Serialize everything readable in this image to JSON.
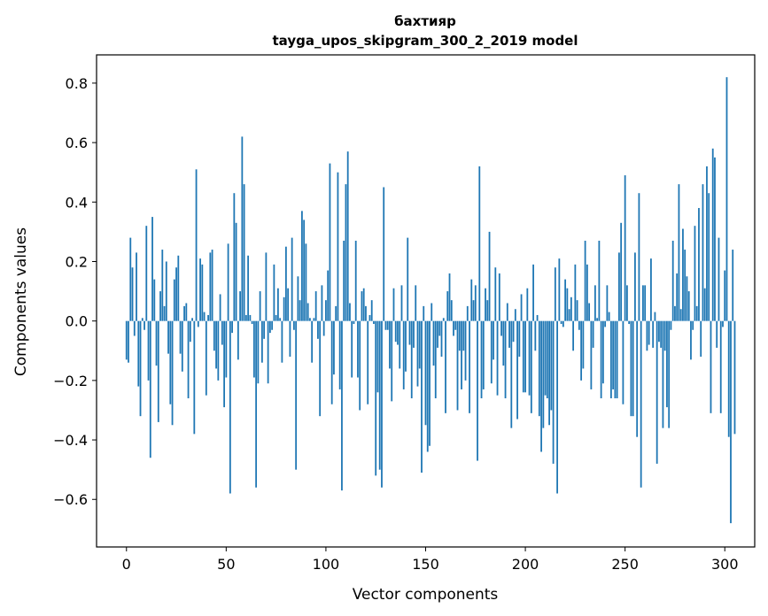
{
  "chart_data": {
    "type": "bar",
    "title_line1": "бахтияр",
    "title_line2": "tayga_upos_skipgram_300_2_2019 model",
    "xlabel": "Vector components",
    "ylabel": "Components values",
    "xlim": [
      -15,
      315
    ],
    "ylim": [
      -0.76,
      0.895
    ],
    "x_ticks": [
      0,
      50,
      100,
      150,
      200,
      250,
      300
    ],
    "x_tick_labels": [
      "0",
      "50",
      "100",
      "150",
      "200",
      "250",
      "300"
    ],
    "y_ticks": [
      -0.6,
      -0.4,
      -0.2,
      0.0,
      0.2,
      0.4,
      0.6,
      0.8
    ],
    "y_tick_labels": [
      "−0.6",
      "−0.4",
      "−0.2",
      "0.0",
      "0.2",
      "0.4",
      "0.6",
      "0.8"
    ],
    "bar_color": "#1f77b4",
    "grid": false,
    "legend": "none",
    "series": [
      {
        "name": "бахтияр",
        "values": [
          -0.13,
          -0.14,
          0.28,
          0.18,
          -0.05,
          0.23,
          -0.22,
          -0.32,
          0.01,
          -0.03,
          0.32,
          -0.2,
          -0.46,
          0.35,
          0.14,
          -0.15,
          -0.34,
          0.1,
          0.24,
          0.05,
          0.2,
          -0.11,
          -0.28,
          -0.35,
          0.14,
          0.18,
          0.22,
          -0.11,
          -0.17,
          0.05,
          0.06,
          -0.26,
          -0.07,
          0.01,
          -0.38,
          0.51,
          -0.02,
          0.21,
          0.19,
          0.03,
          -0.25,
          0.02,
          0.23,
          0.24,
          -0.1,
          -0.16,
          -0.2,
          0.09,
          -0.08,
          -0.29,
          -0.19,
          0.26,
          -0.58,
          -0.04,
          0.43,
          0.33,
          -0.13,
          0.1,
          0.62,
          0.46,
          0.02,
          0.22,
          0.02,
          -0.01,
          -0.19,
          -0.56,
          -0.21,
          0.1,
          -0.14,
          -0.06,
          0.23,
          -0.21,
          -0.04,
          -0.03,
          0.19,
          0.02,
          0.11,
          0.01,
          -0.14,
          0.08,
          0.25,
          0.11,
          -0.12,
          0.28,
          -0.03,
          -0.5,
          0.15,
          0.07,
          0.37,
          0.34,
          0.26,
          0.06,
          0.01,
          -0.14,
          0.01,
          0.1,
          -0.06,
          -0.32,
          0.12,
          -0.05,
          0.07,
          0.17,
          0.53,
          -0.28,
          -0.18,
          0.05,
          0.5,
          -0.23,
          -0.57,
          0.27,
          0.46,
          0.57,
          0.06,
          -0.19,
          -0.01,
          0.27,
          -0.19,
          -0.3,
          0.1,
          0.11,
          0.05,
          -0.28,
          0.02,
          0.07,
          -0.01,
          -0.52,
          -0.24,
          -0.5,
          -0.56,
          0.45,
          -0.03,
          -0.03,
          -0.16,
          -0.27,
          0.11,
          -0.07,
          -0.08,
          -0.16,
          0.12,
          -0.23,
          -0.17,
          0.28,
          -0.08,
          -0.26,
          -0.09,
          0.12,
          -0.22,
          -0.16,
          -0.51,
          0.05,
          -0.35,
          -0.44,
          -0.42,
          0.06,
          -0.15,
          -0.26,
          -0.09,
          -0.05,
          -0.12,
          0.01,
          -0.31,
          0.1,
          0.16,
          0.07,
          -0.05,
          -0.03,
          -0.3,
          -0.1,
          -0.23,
          -0.1,
          -0.2,
          0.05,
          -0.31,
          0.14,
          0.07,
          0.12,
          -0.47,
          0.52,
          -0.26,
          -0.23,
          0.11,
          0.07,
          0.3,
          -0.21,
          -0.13,
          0.18,
          -0.25,
          0.16,
          -0.05,
          -0.15,
          -0.26,
          0.06,
          -0.09,
          -0.36,
          -0.07,
          0.04,
          -0.33,
          -0.12,
          0.09,
          -0.24,
          -0.24,
          0.11,
          -0.25,
          -0.31,
          0.19,
          -0.1,
          0.02,
          -0.32,
          -0.44,
          -0.36,
          -0.25,
          -0.26,
          -0.35,
          -0.3,
          -0.48,
          0.18,
          -0.58,
          0.21,
          -0.01,
          -0.02,
          0.14,
          0.11,
          0.04,
          0.08,
          -0.1,
          0.19,
          0.07,
          -0.03,
          -0.2,
          -0.16,
          0.27,
          0.19,
          0.06,
          -0.23,
          -0.09,
          0.12,
          0.01,
          0.27,
          -0.26,
          -0.21,
          -0.02,
          0.12,
          0.03,
          -0.26,
          -0.23,
          -0.26,
          -0.26,
          0.23,
          0.33,
          -0.28,
          0.49,
          0.12,
          -0.01,
          -0.32,
          -0.32,
          0.23,
          -0.39,
          0.43,
          -0.56,
          0.12,
          0.12,
          -0.1,
          -0.08,
          0.21,
          -0.09,
          0.03,
          -0.48,
          -0.07,
          -0.09,
          -0.36,
          -0.1,
          -0.29,
          -0.36,
          -0.03,
          0.27,
          0.05,
          0.16,
          0.46,
          0.04,
          0.31,
          0.24,
          0.15,
          0.1,
          -0.13,
          -0.03,
          0.32,
          0.05,
          0.38,
          -0.12,
          0.46,
          0.11,
          0.52,
          0.43,
          -0.31,
          0.58,
          0.55,
          -0.09,
          0.28,
          -0.31,
          -0.02,
          0.17,
          0.82,
          -0.39,
          -0.68,
          0.24,
          -0.38
        ]
      }
    ]
  }
}
